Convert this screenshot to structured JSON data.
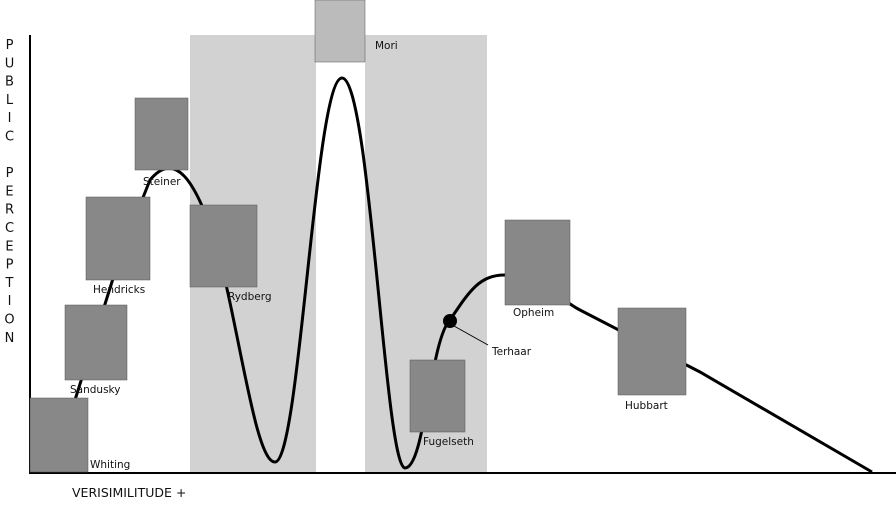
{
  "axis": {
    "y_label": "PUBLIC PERCEPTION",
    "x_label": "VERISIMILITUDE +"
  },
  "people": [
    {
      "name": "Whiting"
    },
    {
      "name": "Sandusky"
    },
    {
      "name": "Hendricks"
    },
    {
      "name": "Steiner"
    },
    {
      "name": "Rydberg"
    },
    {
      "name": "Mori"
    },
    {
      "name": "Fugelseth"
    },
    {
      "name": "Terhaar"
    },
    {
      "name": "Opheim"
    },
    {
      "name": "Hubbart"
    }
  ]
}
